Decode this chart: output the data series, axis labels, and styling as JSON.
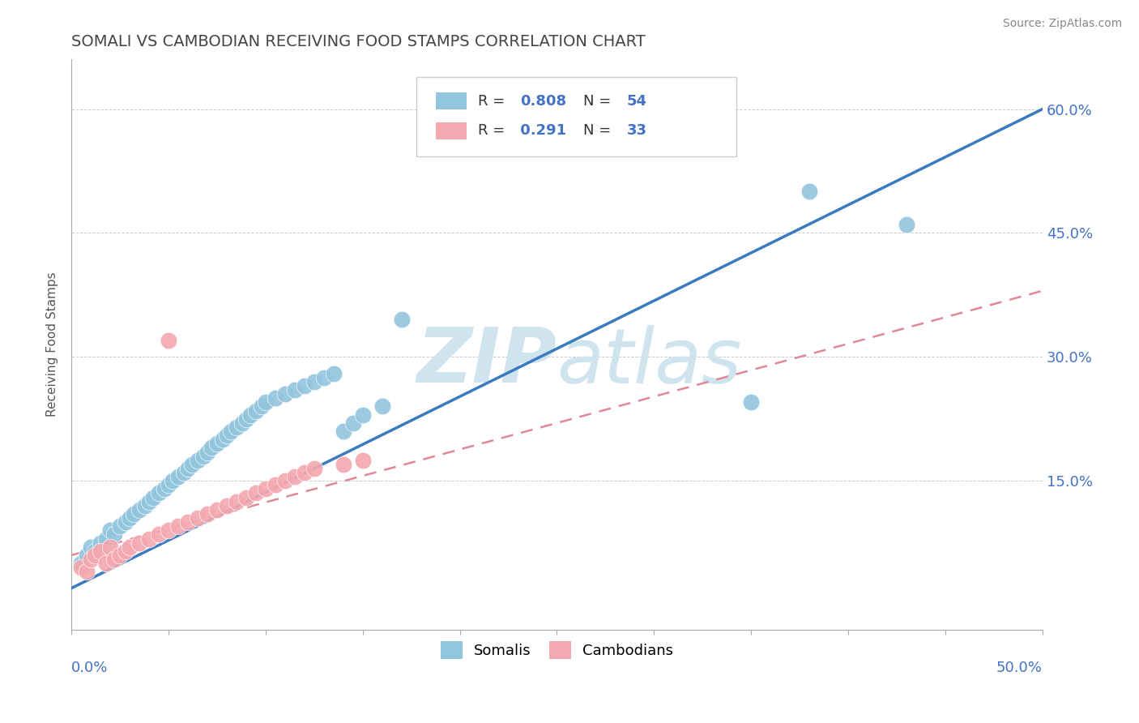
{
  "title": "SOMALI VS CAMBODIAN RECEIVING FOOD STAMPS CORRELATION CHART",
  "source": "Source: ZipAtlas.com",
  "ylabel": "Receiving Food Stamps",
  "y_ticks": [
    0.0,
    0.15,
    0.3,
    0.45,
    0.6
  ],
  "y_tick_labels": [
    "",
    "15.0%",
    "30.0%",
    "45.0%",
    "60.0%"
  ],
  "x_lim": [
    0.0,
    0.5
  ],
  "y_lim": [
    -0.03,
    0.66
  ],
  "somali_R": 0.808,
  "somali_N": 54,
  "cambodian_R": 0.291,
  "cambodian_N": 33,
  "somali_color": "#92c5de",
  "cambodian_color": "#f4a8b0",
  "somali_line_color": "#3a7bbf",
  "cambodian_line_color": "#e08898",
  "watermark": "ZIPatlas",
  "watermark_color": "#d0e4f0",
  "background_color": "#ffffff",
  "title_color": "#444444",
  "axis_label_color": "#4472c4",
  "legend_R_color": "#4472c4",
  "somali_x": [
    0.005,
    0.008,
    0.01,
    0.012,
    0.015,
    0.018,
    0.02,
    0.022,
    0.025,
    0.028,
    0.03,
    0.032,
    0.035,
    0.038,
    0.04,
    0.042,
    0.045,
    0.048,
    0.05,
    0.052,
    0.055,
    0.058,
    0.06,
    0.062,
    0.065,
    0.068,
    0.07,
    0.072,
    0.075,
    0.078,
    0.08,
    0.082,
    0.085,
    0.088,
    0.09,
    0.092,
    0.095,
    0.098,
    0.1,
    0.105,
    0.11,
    0.115,
    0.12,
    0.125,
    0.13,
    0.135,
    0.14,
    0.145,
    0.15,
    0.16,
    0.17,
    0.35,
    0.38,
    0.43
  ],
  "somali_y": [
    0.05,
    0.06,
    0.07,
    0.065,
    0.075,
    0.08,
    0.09,
    0.085,
    0.095,
    0.1,
    0.105,
    0.11,
    0.115,
    0.12,
    0.125,
    0.13,
    0.135,
    0.14,
    0.145,
    0.15,
    0.155,
    0.16,
    0.165,
    0.17,
    0.175,
    0.18,
    0.185,
    0.19,
    0.195,
    0.2,
    0.205,
    0.21,
    0.215,
    0.22,
    0.225,
    0.23,
    0.235,
    0.24,
    0.245,
    0.25,
    0.255,
    0.26,
    0.265,
    0.27,
    0.275,
    0.28,
    0.21,
    0.22,
    0.23,
    0.24,
    0.345,
    0.245,
    0.5,
    0.46
  ],
  "cambodian_x": [
    0.005,
    0.008,
    0.01,
    0.012,
    0.015,
    0.018,
    0.02,
    0.022,
    0.025,
    0.028,
    0.03,
    0.035,
    0.04,
    0.045,
    0.05,
    0.055,
    0.06,
    0.065,
    0.07,
    0.075,
    0.08,
    0.085,
    0.09,
    0.095,
    0.1,
    0.105,
    0.11,
    0.115,
    0.12,
    0.125,
    0.14,
    0.15,
    0.05
  ],
  "cambodian_y": [
    0.045,
    0.04,
    0.055,
    0.06,
    0.065,
    0.05,
    0.07,
    0.055,
    0.06,
    0.065,
    0.07,
    0.075,
    0.08,
    0.085,
    0.09,
    0.095,
    0.1,
    0.105,
    0.11,
    0.115,
    0.12,
    0.125,
    0.13,
    0.135,
    0.14,
    0.145,
    0.15,
    0.155,
    0.16,
    0.165,
    0.17,
    0.175,
    0.32
  ]
}
